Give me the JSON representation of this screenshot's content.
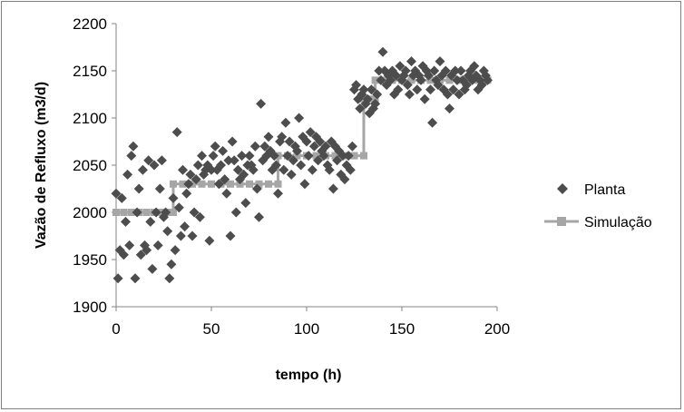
{
  "chart_data": {
    "type": "scatter",
    "title": "",
    "xlabel": "tempo (h)",
    "ylabel": "Vazão de Refluxo (m3/d)",
    "xlim": [
      0,
      200
    ],
    "ylim": [
      1900,
      2200
    ],
    "x_ticks": [
      "0",
      "50",
      "100",
      "150",
      "200"
    ],
    "y_ticks": [
      "1900",
      "1950",
      "2000",
      "2050",
      "2100",
      "2150",
      "2200"
    ],
    "grid": false,
    "legend_position": "right",
    "series": [
      {
        "name": "Planta",
        "kind": "scatter",
        "marker": "diamond",
        "color": "#4d4d4d",
        "x": [
          0,
          1,
          2,
          3,
          4,
          5,
          6,
          7,
          8,
          9,
          10,
          11,
          12,
          13,
          14,
          15,
          16,
          17,
          18,
          19,
          20,
          21,
          22,
          23,
          24,
          25,
          26,
          27,
          28,
          29,
          30,
          31,
          32,
          33,
          34,
          35,
          36,
          37,
          38,
          39,
          40,
          41,
          42,
          43,
          44,
          45,
          46,
          47,
          48,
          49,
          50,
          51,
          52,
          53,
          54,
          55,
          56,
          57,
          58,
          59,
          60,
          61,
          62,
          63,
          64,
          65,
          66,
          67,
          68,
          69,
          70,
          71,
          72,
          73,
          74,
          75,
          76,
          77,
          78,
          79,
          80,
          81,
          82,
          83,
          84,
          85,
          86,
          87,
          88,
          89,
          90,
          91,
          92,
          93,
          94,
          95,
          96,
          97,
          98,
          99,
          100,
          101,
          102,
          103,
          104,
          105,
          106,
          107,
          108,
          109,
          110,
          111,
          112,
          113,
          114,
          115,
          116,
          117,
          118,
          119,
          120,
          121,
          122,
          123,
          124,
          125,
          126,
          127,
          128,
          129,
          130,
          131,
          132,
          133,
          134,
          135,
          136,
          137,
          138,
          139,
          140,
          141,
          142,
          143,
          144,
          145,
          146,
          147,
          148,
          149,
          150,
          151,
          152,
          153,
          154,
          155,
          156,
          157,
          158,
          159,
          160,
          161,
          162,
          163,
          164,
          165,
          166,
          167,
          168,
          169,
          170,
          171,
          172,
          173,
          174,
          175,
          176,
          177,
          178,
          179,
          180,
          181,
          182,
          183,
          184,
          185,
          186,
          187,
          188,
          189,
          190,
          191,
          192,
          193,
          194,
          195
        ],
        "y": [
          2020,
          1930,
          1960,
          2015,
          1955,
          1990,
          2040,
          1965,
          2060,
          2070,
          1930,
          2000,
          2025,
          1955,
          2045,
          1965,
          1960,
          2055,
          1990,
          1940,
          2050,
          2000,
          1965,
          2025,
          2055,
          1995,
          2000,
          1980,
          1930,
          1945,
          2015,
          1960,
          2085,
          2005,
          1975,
          2045,
          1985,
          2020,
          2030,
          2040,
          1975,
          2000,
          2035,
          2050,
          1995,
          2060,
          2040,
          2045,
          2050,
          1970,
          2045,
          2060,
          2070,
          2045,
          2030,
          2050,
          2065,
          2035,
          2020,
          2055,
          1975,
          2075,
          2055,
          2000,
          2045,
          2035,
          2060,
          2040,
          2010,
          2050,
          2060,
          2050,
          2045,
          2070,
          2025,
          1995,
          2115,
          2055,
          2070,
          2060,
          2080,
          2065,
          2045,
          2060,
          2050,
          2020,
          2075,
          2080,
          2045,
          2095,
          2060,
          2075,
          2040,
          2055,
          2070,
          2065,
          2100,
          2050,
          2080,
          2030,
          2075,
          2060,
          2085,
          2045,
          2070,
          2080,
          2055,
          2075,
          2065,
          2060,
          2070,
          2050,
          2045,
          2075,
          2025,
          2070,
          2055,
          2065,
          2040,
          2060,
          2035,
          2050,
          2060,
          2045,
          2070,
          2130,
          2135,
          2120,
          2110,
          2125,
          2130,
          2115,
          2120,
          2105,
          2130,
          2110,
          2115,
          2125,
          2150,
          2140,
          2170,
          2150,
          2135,
          2145,
          2140,
          2150,
          2125,
          2145,
          2130,
          2155,
          2140,
          2145,
          2150,
          2135,
          2125,
          2160,
          2145,
          2150,
          2130,
          2145,
          2140,
          2155,
          2120,
          2150,
          2145,
          2130,
          2095,
          2150,
          2140,
          2135,
          2160,
          2145,
          2130,
          2150,
          2125,
          2110,
          2145,
          2130,
          2150,
          2140,
          2125,
          2150,
          2140,
          2130,
          2135,
          2145,
          2150,
          2140,
          2155,
          2145,
          2130,
          2140,
          2135,
          2150,
          2145,
          2140
        ]
      },
      {
        "name": "Simulação",
        "kind": "line",
        "marker": "square",
        "color": "#a6a6a6",
        "x": [
          0,
          4,
          8,
          12,
          16,
          20,
          24,
          28,
          30,
          30,
          35,
          40,
          45,
          50,
          55,
          60,
          65,
          70,
          75,
          80,
          85,
          85,
          90,
          95,
          100,
          105,
          110,
          115,
          120,
          125,
          130,
          130,
          133,
          136,
          136,
          140,
          145,
          150,
          155,
          160,
          165,
          170,
          175,
          180,
          185,
          190,
          195
        ],
        "y": [
          2000,
          2000,
          2000,
          2000,
          2000,
          2000,
          2000,
          2000,
          2000,
          2030,
          2030,
          2030,
          2030,
          2030,
          2030,
          2030,
          2030,
          2030,
          2030,
          2030,
          2030,
          2060,
          2060,
          2060,
          2060,
          2060,
          2060,
          2060,
          2060,
          2060,
          2060,
          2120,
          2120,
          2120,
          2140,
          2140,
          2140,
          2140,
          2140,
          2140,
          2140,
          2140,
          2140,
          2140,
          2140,
          2140,
          2140
        ]
      }
    ]
  }
}
